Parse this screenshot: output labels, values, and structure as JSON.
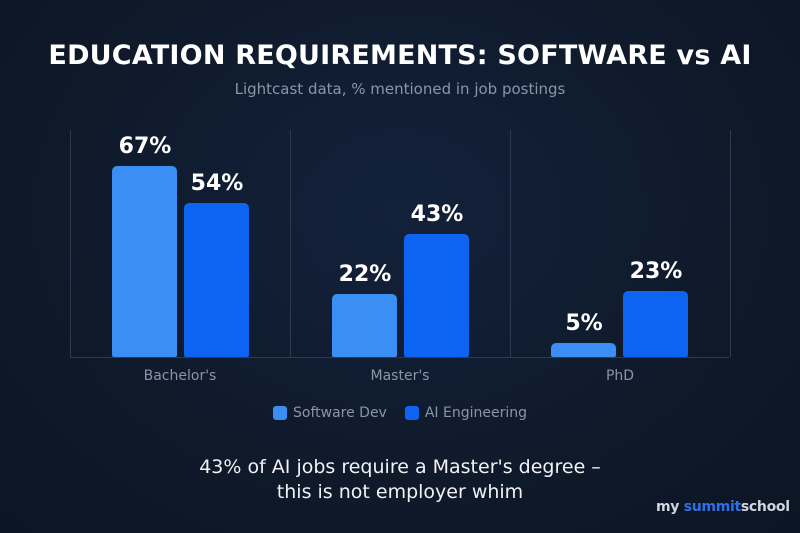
{
  "title": "EDUCATION REQUIREMENTS: SOFTWARE vs AI",
  "subtitle": "Lightcast data, % mentioned in job postings",
  "colors": {
    "software_dev": "#3b8ef3",
    "ai_engineering": "#0d63f2",
    "background": "#0f1a2b"
  },
  "legend": [
    {
      "label": "Software Dev",
      "color": "#3b8ef3"
    },
    {
      "label": "AI Engineering",
      "color": "#0d63f2"
    }
  ],
  "caption": {
    "line1": "43% of AI jobs require a Master's degree –",
    "line2": "this is not employer whim"
  },
  "watermark": {
    "prefix": "my ",
    "highlight": "summit",
    "suffix": "school"
  },
  "chart_data": {
    "type": "bar",
    "title": "EDUCATION REQUIREMENTS: SOFTWARE vs AI",
    "subtitle": "Lightcast data, % mentioned in job postings",
    "categories": [
      "Bachelor's",
      "Master's",
      "PhD"
    ],
    "series": [
      {
        "name": "Software Dev",
        "values": [
          67,
          22,
          5
        ],
        "labels": [
          "67%",
          "22%",
          "5%"
        ]
      },
      {
        "name": "AI Engineering",
        "values": [
          54,
          43,
          23
        ],
        "labels": [
          "54%",
          "43%",
          "23%"
        ]
      }
    ],
    "xlabel": "",
    "ylabel": "% mentioned in job postings",
    "ylim": [
      0,
      80
    ],
    "grid": false,
    "legend_position": "bottom"
  }
}
